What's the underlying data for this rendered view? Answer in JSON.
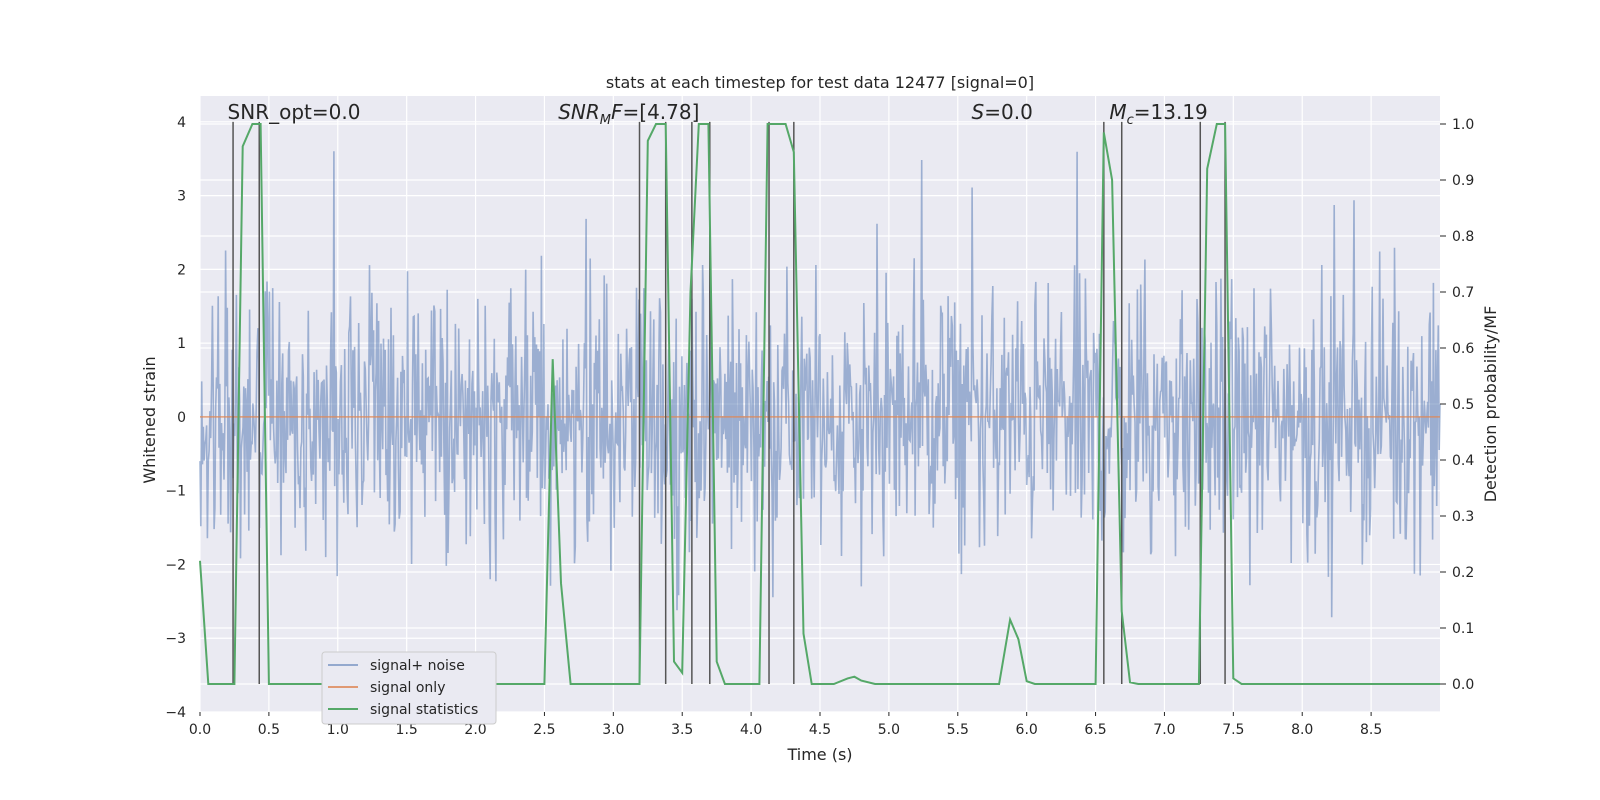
{
  "chart_data": {
    "type": "line",
    "title": "stats at each timestep for test data 12477 [signal=0]",
    "xlabel": "Time (s)",
    "ylabel": "Whitened strain",
    "y2label": "Detection probability/MF",
    "xlim": [
      0.0,
      9.0
    ],
    "ylim": [
      -4,
      4.35
    ],
    "y2lim": [
      -0.05,
      1.05
    ],
    "xticks": [
      0.0,
      0.5,
      1.0,
      1.5,
      2.0,
      2.5,
      3.0,
      3.5,
      4.0,
      4.5,
      5.0,
      5.5,
      6.0,
      6.5,
      7.0,
      7.5,
      8.0,
      8.5
    ],
    "yticks": [
      -4,
      -3,
      -2,
      -1,
      0,
      1,
      2,
      3,
      4
    ],
    "y2ticks": [
      0.0,
      0.1,
      0.2,
      0.3,
      0.4,
      0.5,
      0.6,
      0.7,
      0.8,
      0.9,
      1.0
    ],
    "grid": true,
    "legend_position": "lower-left",
    "annotations": [
      {
        "text": "SNR_opt=0.0",
        "x": 0.2,
        "y": 4.0
      },
      {
        "text": "SNR_MF=[4.78]",
        "x": 2.6,
        "y": 4.0
      },
      {
        "text": "S=0.0",
        "x": 5.6,
        "y": 4.0
      },
      {
        "text": "M_c=13.19",
        "x": 6.6,
        "y": 4.0
      }
    ],
    "series": [
      {
        "name": "signal+ noise",
        "color": "#4c72b0",
        "note": "whitened strain noise, approx. +/-1.3 envelope with spikes to +/-3.6"
      },
      {
        "name": "signal only",
        "color": "#dd8452",
        "values_const": 0.0
      },
      {
        "name": "signal statistics",
        "color": "#55a868",
        "axis": "right",
        "x": [
          0.0,
          0.06,
          0.25,
          0.31,
          0.38,
          0.44,
          0.5,
          0.56,
          2.5,
          2.56,
          2.62,
          2.69,
          3.19,
          3.25,
          3.31,
          3.38,
          3.44,
          3.5,
          3.56,
          3.62,
          3.69,
          3.75,
          3.81,
          3.88,
          4.06,
          4.12,
          4.19,
          4.25,
          4.31,
          4.38,
          4.44,
          4.6,
          4.7,
          4.75,
          4.8,
          4.9,
          5.8,
          5.88,
          5.94,
          6.0,
          6.06,
          6.5,
          6.56,
          6.62,
          6.69,
          6.75,
          6.81,
          6.88,
          7.25,
          7.31,
          7.38,
          7.44,
          7.5,
          7.56,
          9.0
        ],
        "values": [
          0.22,
          0.0,
          0.0,
          0.96,
          1.0,
          1.0,
          0.0,
          0.0,
          0.0,
          0.58,
          0.18,
          0.0,
          0.0,
          0.97,
          1.0,
          1.0,
          0.04,
          0.02,
          0.7,
          1.0,
          1.0,
          0.04,
          0.0,
          0.0,
          0.0,
          1.0,
          1.0,
          1.0,
          0.95,
          0.09,
          0.0,
          0.0,
          0.01,
          0.013,
          0.006,
          0.0,
          0.0,
          0.115,
          0.08,
          0.005,
          0.0,
          0.0,
          0.985,
          0.9,
          0.13,
          0.003,
          0.0,
          0.0,
          0.0,
          0.92,
          1.0,
          1.0,
          0.01,
          0.0,
          0.0
        ]
      }
    ],
    "vertical_lines": [
      0.24,
      0.43,
      3.19,
      3.38,
      3.57,
      3.7,
      4.13,
      4.31,
      6.56,
      6.69,
      7.26,
      7.44
    ]
  }
}
